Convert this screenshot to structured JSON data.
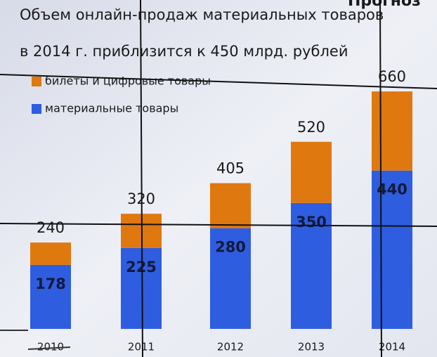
{
  "chart_data": {
    "type": "stacked_bar",
    "title": "Объем онлайн-продаж материальных товаров",
    "subtitle": "в 2014 г. приблизится к 450 млрд. рублей",
    "annotation": "Прогноз",
    "categories": [
      "2010",
      "2011",
      "2012",
      "2013",
      "2014"
    ],
    "series": [
      {
        "name": "билеты и цифровые товары",
        "color": "#e07810",
        "values": [
          62,
          95,
          125,
          170,
          220
        ]
      },
      {
        "name": "материальные товары",
        "color": "#2f5de0",
        "values": [
          178,
          225,
          280,
          350,
          440
        ],
        "labels": true
      }
    ],
    "totals": [
      240,
      320,
      405,
      520,
      660
    ]
  }
}
